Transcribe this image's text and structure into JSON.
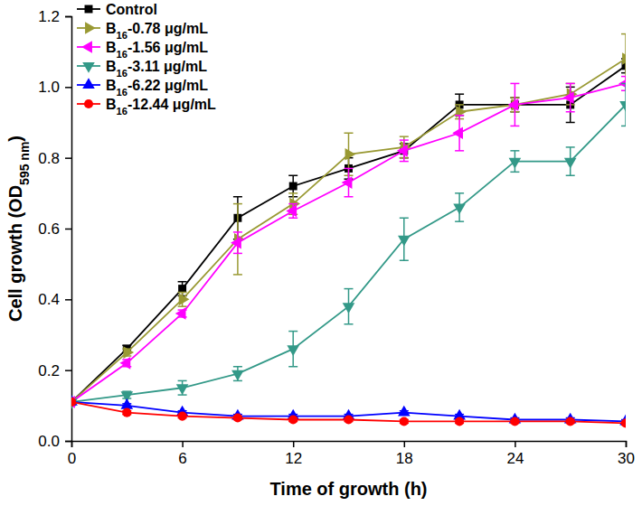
{
  "chart_data": {
    "type": "line",
    "x_label": "Time of growth (h)",
    "y_label": "Cell growth (OD595 nm)",
    "x": [
      0,
      3,
      6,
      9,
      12,
      15,
      18,
      21,
      24,
      27,
      30
    ],
    "xlim": [
      0,
      30
    ],
    "xticks": [
      0,
      6,
      12,
      18,
      24,
      30
    ],
    "ylim": [
      0,
      1.2
    ],
    "yticks": [
      {
        "value": 0,
        "label": "0.0"
      },
      0.2,
      0.4,
      0.6,
      0.8,
      {
        "value": 1,
        "label": "1.0"
      },
      1.2
    ],
    "legend": "top-left",
    "grid": false,
    "series": [
      {
        "name": "Control",
        "color": "#000000",
        "marker": "square",
        "line_style": "solid",
        "values": [
          0.11,
          0.26,
          0.43,
          0.63,
          0.72,
          0.77,
          0.82,
          0.95,
          0.95,
          0.95,
          1.06
        ],
        "errors": [
          0.005,
          0.01,
          0.02,
          0.06,
          0.03,
          0.03,
          0.02,
          0.03,
          0.02,
          0.05,
          0.02
        ]
      },
      {
        "name": "B16-0.78 μg/mL",
        "color": "#999933",
        "marker": "triangle-right",
        "line_style": "solid",
        "values": [
          0.11,
          0.25,
          0.4,
          0.57,
          0.67,
          0.81,
          0.83,
          0.93,
          0.95,
          0.98,
          1.08
        ],
        "errors": [
          0.005,
          0.01,
          0.02,
          0.1,
          0.03,
          0.06,
          0.03,
          0.02,
          0.02,
          0.03,
          0.07
        ]
      },
      {
        "name": "B16-1.56 μg/mL",
        "color": "#ff00ff",
        "marker": "triangle-left",
        "line_style": "solid",
        "values": [
          0.11,
          0.22,
          0.36,
          0.56,
          0.65,
          0.73,
          0.82,
          0.87,
          0.95,
          0.97,
          1.01
        ],
        "errors": [
          0.005,
          0.01,
          0.01,
          0.03,
          0.02,
          0.04,
          0.03,
          0.05,
          0.06,
          0.04,
          0.02
        ]
      },
      {
        "name": "B16-3.11 μg/mL",
        "color": "#339988",
        "marker": "triangle-down",
        "line_style": "solid",
        "values": [
          0.11,
          0.13,
          0.15,
          0.19,
          0.26,
          0.38,
          0.57,
          0.66,
          0.79,
          0.79,
          0.95
        ],
        "errors": [
          0.005,
          0.01,
          0.02,
          0.02,
          0.05,
          0.05,
          0.06,
          0.04,
          0.03,
          0.04,
          0.06
        ]
      },
      {
        "name": "B16-6.22 μg/mL",
        "color": "#0000ff",
        "marker": "triangle-up",
        "line_style": "solid",
        "values": [
          0.11,
          0.1,
          0.08,
          0.07,
          0.07,
          0.07,
          0.08,
          0.07,
          0.06,
          0.06,
          0.055
        ],
        "errors": [
          0.005,
          0.005,
          0.005,
          0.005,
          0.005,
          0.005,
          0.005,
          0.005,
          0.005,
          0.005,
          0.005
        ]
      },
      {
        "name": "B16-12.44 μg/mL",
        "color": "#ff0000",
        "marker": "circle",
        "line_style": "solid",
        "values": [
          0.11,
          0.08,
          0.07,
          0.065,
          0.06,
          0.06,
          0.055,
          0.055,
          0.055,
          0.055,
          0.05
        ],
        "errors": [
          0.005,
          0.005,
          0.005,
          0.005,
          0.005,
          0.005,
          0.005,
          0.005,
          0.005,
          0.005,
          0.005
        ]
      }
    ]
  }
}
